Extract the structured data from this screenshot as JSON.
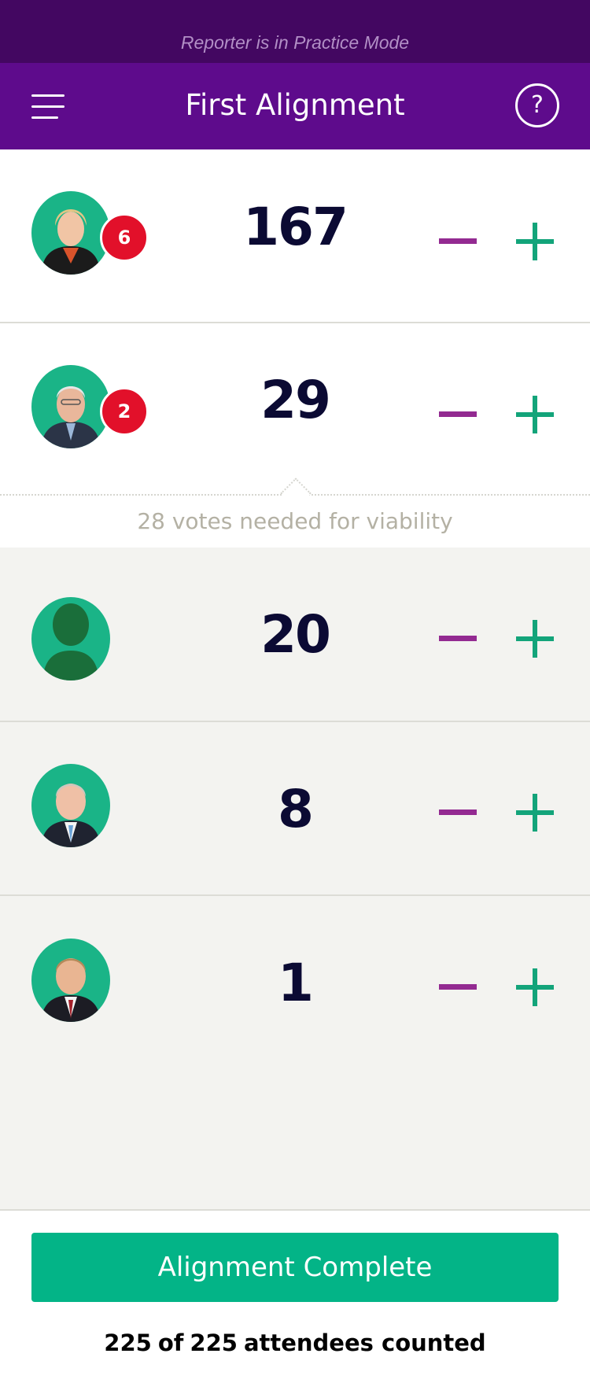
{
  "banner": {
    "text": "Reporter is in Practice Mode"
  },
  "header": {
    "title": "First Alignment",
    "help_label": "?"
  },
  "candidates": [
    {
      "count": "167",
      "badge": "6",
      "avatar": "candidate-photo"
    },
    {
      "count": "29",
      "badge": "2",
      "avatar": "candidate-photo"
    },
    {
      "count": "20",
      "avatar": "uncommitted-silhouette"
    },
    {
      "count": "8",
      "avatar": "candidate-photo"
    },
    {
      "count": "1",
      "avatar": "candidate-photo"
    }
  ],
  "viability": {
    "text": "28 votes needed for viability"
  },
  "footer": {
    "button_label": "Alignment Complete",
    "counted": "225",
    "of": "of",
    "total": "225",
    "suffix": "attendees counted"
  },
  "colors": {
    "banner": "#430761",
    "header": "#5e0b8c",
    "accent_green": "#03b487",
    "minus_purple": "#932a91",
    "badge_red": "#e2102a",
    "count_navy": "#0b0a33"
  }
}
